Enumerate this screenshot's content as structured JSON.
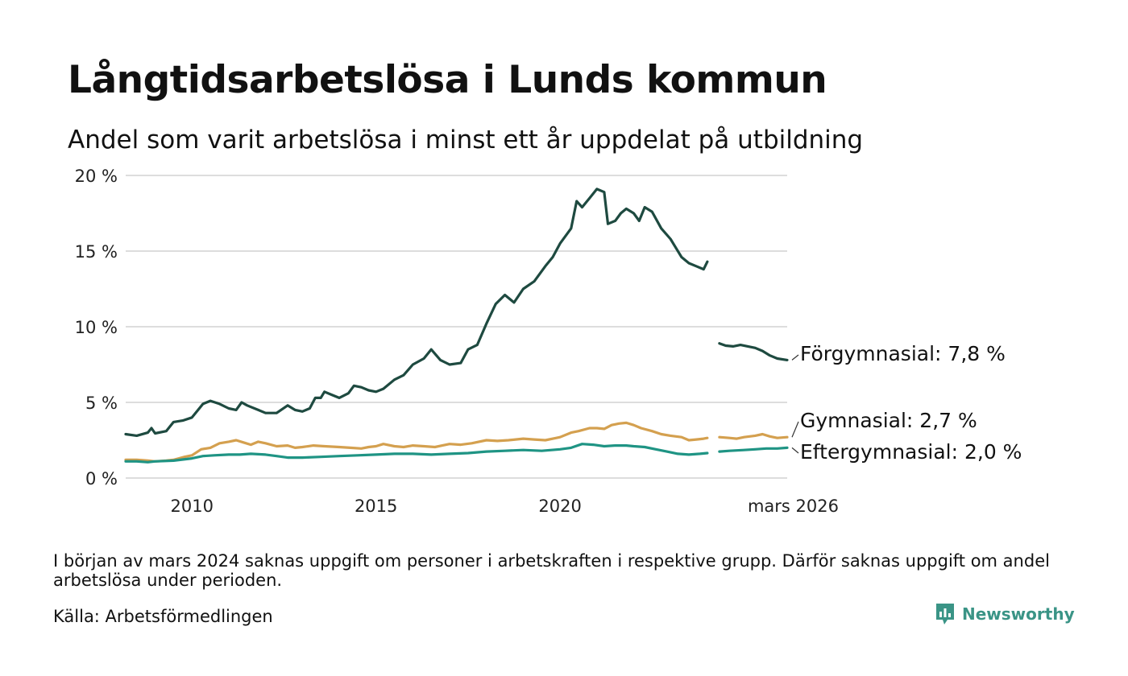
{
  "header": {
    "title": "Långtidsarbetslösa i Lunds kommun",
    "subtitle": "Andel som varit arbetslösa i minst ett år uppdelat på utbildning"
  },
  "footer": {
    "note": "I början av mars 2024 saknas uppgift om personer i arbetskraften i respektive grupp. Därför saknas uppgift om andel arbetslösa under perioden.",
    "source": "Källa: Arbetsförmedlingen",
    "brand": "Newsworthy",
    "brand_icon": "bar-chart-speech-bubble-icon",
    "brand_color": "#3a9486"
  },
  "chart_data": {
    "type": "line",
    "title": "Långtidsarbetslösa i Lunds kommun",
    "subtitle": "Andel som varit arbetslösa i minst ett år uppdelat på utbildning",
    "xlabel": "",
    "ylabel": "",
    "xlim": [
      2008.2,
      2026.17
    ],
    "ylim": [
      0,
      20
    ],
    "yticks": [
      0,
      5,
      10,
      15,
      20
    ],
    "ytick_labels": [
      "0 %",
      "5 %",
      "10 %",
      "15 %",
      "20 %"
    ],
    "xticks": [
      2010,
      2015,
      2020,
      2026.17
    ],
    "xtick_labels": [
      "2010",
      "2015",
      "2020",
      "mars 2026"
    ],
    "grid": true,
    "legend": "direct labels at line ends (right)",
    "gap": [
      2024.0,
      2024.33
    ],
    "series": [
      {
        "name": "Förgymnasial",
        "end_label": "Förgymnasial: 7,8 %",
        "color": "#1e4a40",
        "points": [
          [
            2008.2,
            2.9
          ],
          [
            2008.5,
            2.8
          ],
          [
            2008.8,
            3.0
          ],
          [
            2008.9,
            3.3
          ],
          [
            2009.0,
            2.95
          ],
          [
            2009.3,
            3.1
          ],
          [
            2009.5,
            3.7
          ],
          [
            2009.75,
            3.8
          ],
          [
            2010.0,
            4.0
          ],
          [
            2010.3,
            4.9
          ],
          [
            2010.5,
            5.1
          ],
          [
            2010.75,
            4.9
          ],
          [
            2011.0,
            4.6
          ],
          [
            2011.2,
            4.5
          ],
          [
            2011.35,
            5.0
          ],
          [
            2011.5,
            4.8
          ],
          [
            2011.8,
            4.5
          ],
          [
            2012.0,
            4.3
          ],
          [
            2012.3,
            4.3
          ],
          [
            2012.6,
            4.8
          ],
          [
            2012.8,
            4.5
          ],
          [
            2013.0,
            4.4
          ],
          [
            2013.2,
            4.6
          ],
          [
            2013.35,
            5.3
          ],
          [
            2013.5,
            5.3
          ],
          [
            2013.6,
            5.7
          ],
          [
            2013.8,
            5.5
          ],
          [
            2014.0,
            5.3
          ],
          [
            2014.25,
            5.6
          ],
          [
            2014.4,
            6.1
          ],
          [
            2014.6,
            6.0
          ],
          [
            2014.8,
            5.8
          ],
          [
            2015.0,
            5.7
          ],
          [
            2015.2,
            5.9
          ],
          [
            2015.5,
            6.5
          ],
          [
            2015.75,
            6.8
          ],
          [
            2016.0,
            7.5
          ],
          [
            2016.3,
            7.9
          ],
          [
            2016.5,
            8.5
          ],
          [
            2016.75,
            7.8
          ],
          [
            2017.0,
            7.5
          ],
          [
            2017.3,
            7.6
          ],
          [
            2017.5,
            8.5
          ],
          [
            2017.75,
            8.8
          ],
          [
            2018.0,
            10.2
          ],
          [
            2018.25,
            11.5
          ],
          [
            2018.5,
            12.1
          ],
          [
            2018.75,
            11.6
          ],
          [
            2019.0,
            12.5
          ],
          [
            2019.3,
            13.0
          ],
          [
            2019.6,
            14.0
          ],
          [
            2019.8,
            14.6
          ],
          [
            2020.0,
            15.5
          ],
          [
            2020.3,
            16.5
          ],
          [
            2020.45,
            18.3
          ],
          [
            2020.6,
            17.9
          ],
          [
            2020.8,
            18.5
          ],
          [
            2021.0,
            19.1
          ],
          [
            2021.2,
            18.9
          ],
          [
            2021.3,
            16.8
          ],
          [
            2021.5,
            17.0
          ],
          [
            2021.65,
            17.5
          ],
          [
            2021.8,
            17.8
          ],
          [
            2022.0,
            17.5
          ],
          [
            2022.15,
            17.0
          ],
          [
            2022.3,
            17.9
          ],
          [
            2022.5,
            17.6
          ],
          [
            2022.75,
            16.5
          ],
          [
            2023.0,
            15.8
          ],
          [
            2023.15,
            15.2
          ],
          [
            2023.3,
            14.6
          ],
          [
            2023.5,
            14.2
          ],
          [
            2023.7,
            14.0
          ],
          [
            2023.9,
            13.8
          ],
          [
            2024.0,
            14.3
          ],
          [
            2024.33,
            8.9
          ],
          [
            2024.5,
            8.75
          ],
          [
            2024.7,
            8.7
          ],
          [
            2024.9,
            8.8
          ],
          [
            2025.1,
            8.7
          ],
          [
            2025.3,
            8.6
          ],
          [
            2025.5,
            8.4
          ],
          [
            2025.7,
            8.1
          ],
          [
            2025.9,
            7.9
          ],
          [
            2026.17,
            7.8
          ]
        ]
      },
      {
        "name": "Gymnasial",
        "end_label": "Gymnasial: 2,7 %",
        "color": "#d4a04f",
        "points": [
          [
            2008.2,
            1.2
          ],
          [
            2008.5,
            1.2
          ],
          [
            2008.8,
            1.15
          ],
          [
            2009.0,
            1.1
          ],
          [
            2009.3,
            1.15
          ],
          [
            2009.5,
            1.2
          ],
          [
            2009.8,
            1.4
          ],
          [
            2010.0,
            1.5
          ],
          [
            2010.25,
            1.9
          ],
          [
            2010.5,
            2.0
          ],
          [
            2010.75,
            2.3
          ],
          [
            2011.0,
            2.4
          ],
          [
            2011.2,
            2.5
          ],
          [
            2011.4,
            2.35
          ],
          [
            2011.6,
            2.2
          ],
          [
            2011.8,
            2.4
          ],
          [
            2012.0,
            2.3
          ],
          [
            2012.3,
            2.1
          ],
          [
            2012.6,
            2.15
          ],
          [
            2012.8,
            2.0
          ],
          [
            2013.0,
            2.05
          ],
          [
            2013.3,
            2.15
          ],
          [
            2013.6,
            2.1
          ],
          [
            2014.0,
            2.05
          ],
          [
            2014.3,
            2.0
          ],
          [
            2014.6,
            1.95
          ],
          [
            2014.8,
            2.05
          ],
          [
            2015.0,
            2.1
          ],
          [
            2015.2,
            2.25
          ],
          [
            2015.5,
            2.1
          ],
          [
            2015.75,
            2.05
          ],
          [
            2016.0,
            2.15
          ],
          [
            2016.3,
            2.1
          ],
          [
            2016.6,
            2.05
          ],
          [
            2016.8,
            2.15
          ],
          [
            2017.0,
            2.25
          ],
          [
            2017.3,
            2.2
          ],
          [
            2017.6,
            2.3
          ],
          [
            2018.0,
            2.5
          ],
          [
            2018.3,
            2.45
          ],
          [
            2018.6,
            2.5
          ],
          [
            2019.0,
            2.6
          ],
          [
            2019.3,
            2.55
          ],
          [
            2019.6,
            2.5
          ],
          [
            2019.9,
            2.65
          ],
          [
            2020.0,
            2.7
          ],
          [
            2020.3,
            3.0
          ],
          [
            2020.5,
            3.1
          ],
          [
            2020.8,
            3.3
          ],
          [
            2021.0,
            3.3
          ],
          [
            2021.2,
            3.25
          ],
          [
            2021.4,
            3.5
          ],
          [
            2021.6,
            3.6
          ],
          [
            2021.8,
            3.65
          ],
          [
            2022.0,
            3.5
          ],
          [
            2022.2,
            3.3
          ],
          [
            2022.5,
            3.1
          ],
          [
            2022.75,
            2.9
          ],
          [
            2023.0,
            2.8
          ],
          [
            2023.3,
            2.7
          ],
          [
            2023.5,
            2.5
          ],
          [
            2023.7,
            2.55
          ],
          [
            2023.9,
            2.6
          ],
          [
            2024.0,
            2.65
          ],
          [
            2024.33,
            2.7
          ],
          [
            2024.6,
            2.65
          ],
          [
            2024.8,
            2.6
          ],
          [
            2025.0,
            2.7
          ],
          [
            2025.3,
            2.8
          ],
          [
            2025.5,
            2.9
          ],
          [
            2025.7,
            2.75
          ],
          [
            2025.9,
            2.65
          ],
          [
            2026.17,
            2.7
          ]
        ]
      },
      {
        "name": "Eftergymnasial",
        "end_label": "Eftergymnasial: 2,0 %",
        "color": "#1f9484",
        "points": [
          [
            2008.2,
            1.1
          ],
          [
            2008.5,
            1.1
          ],
          [
            2008.8,
            1.05
          ],
          [
            2009.0,
            1.1
          ],
          [
            2009.5,
            1.15
          ],
          [
            2010.0,
            1.3
          ],
          [
            2010.3,
            1.45
          ],
          [
            2010.6,
            1.5
          ],
          [
            2011.0,
            1.55
          ],
          [
            2011.3,
            1.55
          ],
          [
            2011.6,
            1.6
          ],
          [
            2012.0,
            1.55
          ],
          [
            2012.3,
            1.45
          ],
          [
            2012.6,
            1.35
          ],
          [
            2013.0,
            1.35
          ],
          [
            2013.5,
            1.4
          ],
          [
            2014.0,
            1.45
          ],
          [
            2014.5,
            1.5
          ],
          [
            2015.0,
            1.55
          ],
          [
            2015.5,
            1.6
          ],
          [
            2016.0,
            1.6
          ],
          [
            2016.5,
            1.55
          ],
          [
            2017.0,
            1.6
          ],
          [
            2017.5,
            1.65
          ],
          [
            2018.0,
            1.75
          ],
          [
            2018.5,
            1.8
          ],
          [
            2019.0,
            1.85
          ],
          [
            2019.5,
            1.8
          ],
          [
            2020.0,
            1.9
          ],
          [
            2020.3,
            2.0
          ],
          [
            2020.6,
            2.25
          ],
          [
            2020.9,
            2.2
          ],
          [
            2021.2,
            2.1
          ],
          [
            2021.5,
            2.15
          ],
          [
            2021.8,
            2.15
          ],
          [
            2022.0,
            2.1
          ],
          [
            2022.3,
            2.05
          ],
          [
            2022.6,
            1.9
          ],
          [
            2022.9,
            1.75
          ],
          [
            2023.2,
            1.6
          ],
          [
            2023.5,
            1.55
          ],
          [
            2023.8,
            1.6
          ],
          [
            2024.0,
            1.65
          ],
          [
            2024.33,
            1.75
          ],
          [
            2024.6,
            1.8
          ],
          [
            2025.0,
            1.85
          ],
          [
            2025.3,
            1.9
          ],
          [
            2025.6,
            1.95
          ],
          [
            2025.9,
            1.95
          ],
          [
            2026.17,
            2.0
          ]
        ]
      }
    ]
  }
}
